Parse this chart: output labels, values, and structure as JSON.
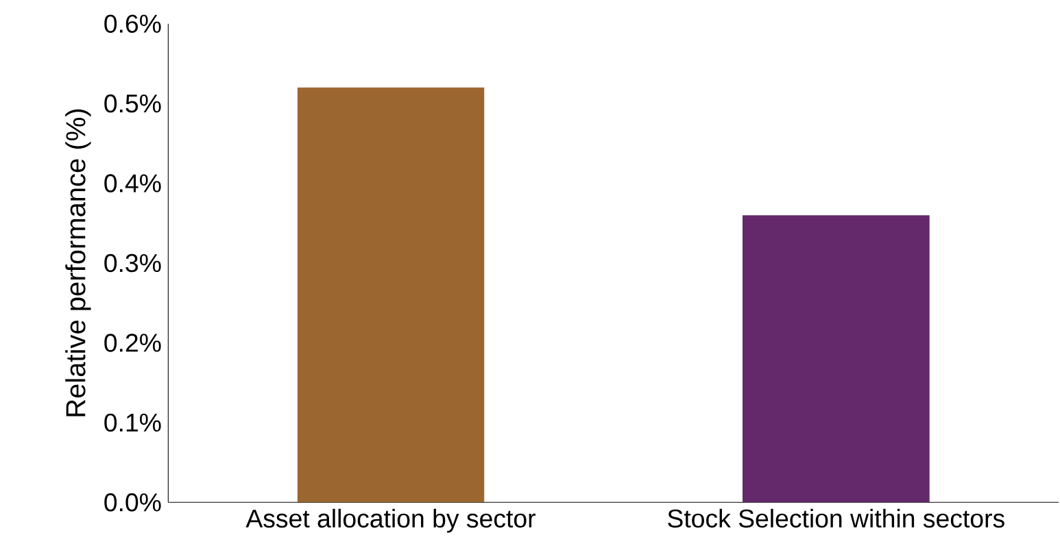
{
  "chart_data": {
    "type": "bar",
    "ylabel": "Relative performance (%)",
    "categories": [
      "Asset allocation by sector",
      "Stock Selection within sectors"
    ],
    "values": [
      0.52,
      0.36
    ],
    "colors": [
      "#9b6630",
      "#64296a"
    ],
    "ylim": [
      0,
      0.6
    ],
    "yticks": [
      {
        "value": 0,
        "label": "0.0%"
      },
      {
        "value": 0.1,
        "label": "0.1%"
      },
      {
        "value": 0.2,
        "label": "0.2%"
      },
      {
        "value": 0.3,
        "label": "0.3%"
      },
      {
        "value": 0.4,
        "label": "0.4%"
      },
      {
        "value": 0.5,
        "label": "0.5%"
      },
      {
        "value": 0.6,
        "label": "0.6%"
      }
    ]
  }
}
